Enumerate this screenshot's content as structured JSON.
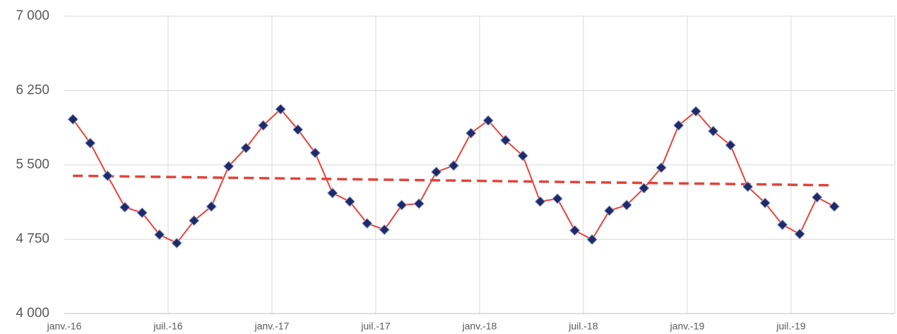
{
  "chart_data": {
    "type": "line",
    "categories": [
      "janv.-16",
      null,
      null,
      null,
      null,
      null,
      "juil.-16",
      null,
      null,
      null,
      null,
      null,
      "janv.-17",
      null,
      null,
      null,
      null,
      null,
      "juil.-17",
      null,
      null,
      null,
      null,
      null,
      "janv.-18",
      null,
      null,
      null,
      null,
      null,
      "juil.-18",
      null,
      null,
      null,
      null,
      null,
      "janv.-19",
      null,
      null,
      null,
      null,
      null,
      "juil.-19",
      null,
      null,
      null,
      null,
      null
    ],
    "series": [
      {
        "color": "#e8433a",
        "marker_color": "#1f2a6b",
        "values": [
          5960,
          5720,
          5390,
          5073,
          5017,
          4796,
          4711,
          4938,
          5080,
          5486,
          5671,
          5898,
          6062,
          5856,
          5621,
          5216,
          5130,
          4910,
          4846,
          5095,
          5109,
          5429,
          5493,
          5820,
          5948,
          5749,
          5592,
          5130,
          5159,
          4839,
          4747,
          5038,
          5095,
          5265,
          5472,
          5898,
          6040,
          5841,
          5699,
          5280,
          5116,
          4896,
          4803,
          5173,
          5080,
          null,
          null,
          null
        ]
      }
    ],
    "trend": {
      "start": 5390,
      "end": 5294,
      "color": "#e0443a"
    },
    "ylim": [
      4000,
      7000
    ],
    "yticks": [
      {
        "value": 4000,
        "label": "4 000"
      },
      {
        "value": 4750,
        "label": "4 750"
      },
      {
        "value": 5500,
        "label": "5 500"
      },
      {
        "value": 6250,
        "label": "6 250"
      },
      {
        "value": 7000,
        "label": "7 000"
      }
    ],
    "grid": true,
    "legend": false
  }
}
